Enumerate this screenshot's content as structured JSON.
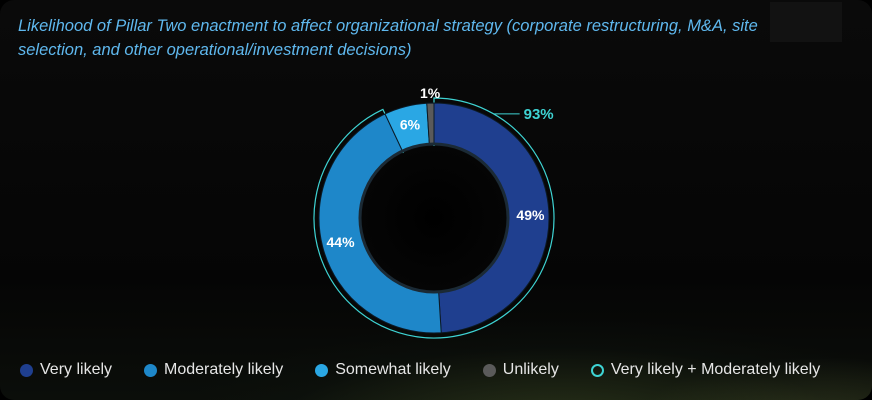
{
  "title": "Likelihood of Pillar Two enactment to affect organizational strategy (corporate restructuring, M&A, site selection, and other operational/investment decisions)",
  "chart_data": {
    "type": "donut",
    "series": [
      {
        "name": "Very likely",
        "value": 49,
        "label": "49%",
        "color": "#1f3f8f"
      },
      {
        "name": "Moderately likely",
        "value": 44,
        "label": "44%",
        "color": "#1e87c9"
      },
      {
        "name": "Somewhat likely",
        "value": 6,
        "label": "6%",
        "color": "#2aa7e4"
      },
      {
        "name": "Unlikely",
        "value": 1,
        "label": "1%",
        "color": "#5a5a5a"
      }
    ],
    "combined": {
      "name": "Very likely + Moderately likely",
      "value": 93,
      "label": "93%",
      "color": "#3ed3d3"
    }
  },
  "legend": [
    {
      "label": "Very likely",
      "color": "#1f3f8f",
      "style": "filled"
    },
    {
      "label": "Moderately likely",
      "color": "#1e87c9",
      "style": "filled"
    },
    {
      "label": "Somewhat likely",
      "color": "#2aa7e4",
      "style": "filled"
    },
    {
      "label": "Unlikely",
      "color": "#5a5a5a",
      "style": "filled"
    },
    {
      "label": "Very likely + Moderately likely",
      "color": "#3ed3d3",
      "style": "outline"
    }
  ]
}
